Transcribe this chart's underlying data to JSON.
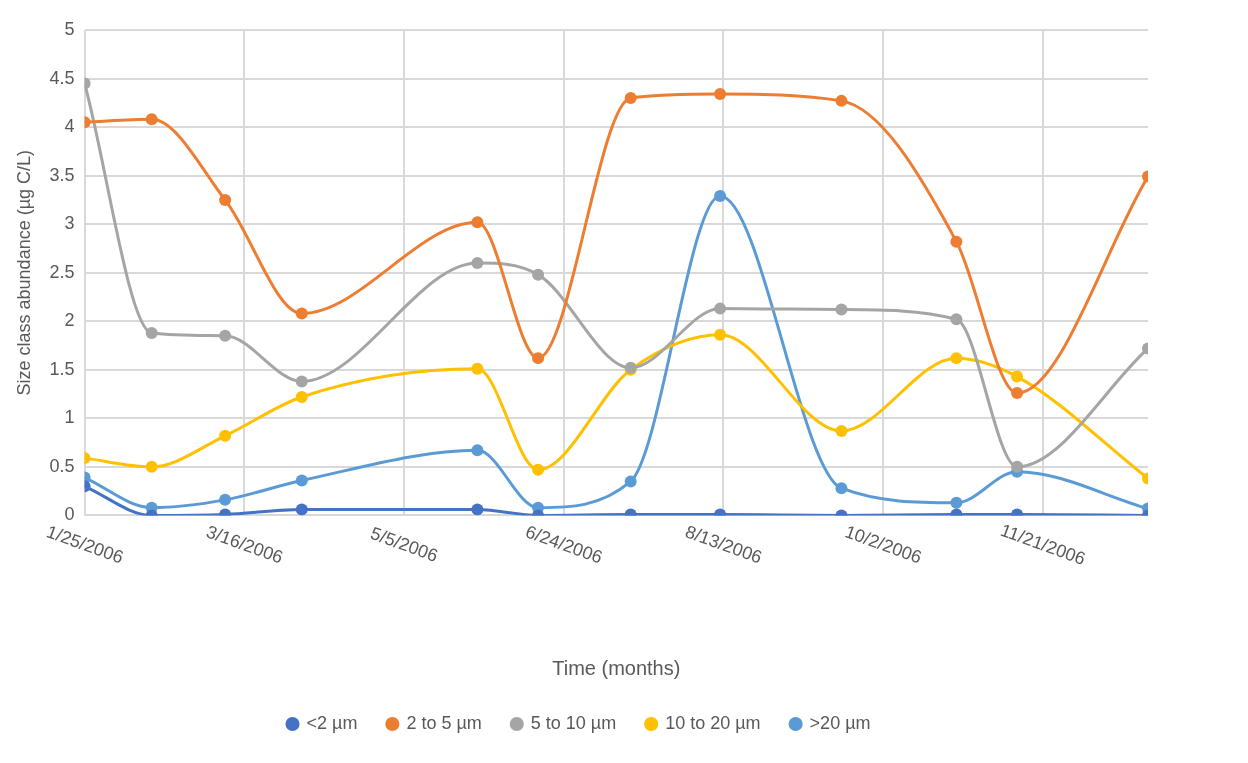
{
  "chart_data": {
    "type": "line",
    "xlabel": "Time (months)",
    "ylabel": "Size class abundance (µg C/L)",
    "x": [
      "2006-01-25",
      "2006-02-15",
      "2006-03-10",
      "2006-04-03",
      "2006-05-28",
      "2006-06-16",
      "2006-07-15",
      "2006-08-12",
      "2006-09-19",
      "2006-10-25",
      "2006-11-13",
      "2006-12-24"
    ],
    "xlim": [
      "2006-01-25",
      "2006-12-24"
    ],
    "xticks": [
      {
        "value": "2006-01-25",
        "label": "1/25/2006"
      },
      {
        "value": "2006-03-16",
        "label": "3/16/2006"
      },
      {
        "value": "2006-05-05",
        "label": "5/5/2006"
      },
      {
        "value": "2006-06-24",
        "label": "6/24/2006"
      },
      {
        "value": "2006-08-13",
        "label": "8/13/2006"
      },
      {
        "value": "2006-10-02",
        "label": "10/2/2006"
      },
      {
        "value": "2006-11-21",
        "label": "11/21/2006"
      }
    ],
    "ylim": [
      0,
      5
    ],
    "yticks": [
      0,
      0.5,
      1,
      1.5,
      2,
      2.5,
      3,
      3.5,
      4,
      4.5,
      5
    ],
    "grid": true,
    "legend": "bottom",
    "marker": "circle",
    "series": [
      {
        "name": "<2 µm",
        "color": "#4472c4",
        "values": [
          0.3,
          0,
          0.01,
          0.06,
          0.06,
          0,
          0.01,
          0.01,
          0,
          0.01,
          0.01,
          0
        ]
      },
      {
        "name": "2 to 5 µm",
        "color": "#ed7d31",
        "values": [
          4.05,
          4.08,
          3.25,
          2.08,
          3.02,
          1.62,
          4.3,
          4.34,
          4.27,
          2.82,
          1.26,
          3.49
        ]
      },
      {
        "name": "5 to 10 µm",
        "color": "#a5a5a5",
        "values": [
          4.45,
          1.88,
          1.85,
          1.38,
          2.6,
          2.48,
          1.52,
          2.13,
          2.12,
          2.02,
          0.5,
          1.72
        ]
      },
      {
        "name": "10 to 20 µm",
        "color": "#ffc000",
        "values": [
          0.59,
          0.5,
          0.82,
          1.22,
          1.51,
          0.47,
          1.5,
          1.86,
          0.87,
          1.62,
          1.43,
          0.38
        ]
      },
      {
        "name": ">20 µm",
        "color": "#5b9bd5",
        "values": [
          0.39,
          0.08,
          0.16,
          0.36,
          0.67,
          0.08,
          0.35,
          3.29,
          0.28,
          0.13,
          0.45,
          0.07
        ]
      }
    ]
  }
}
